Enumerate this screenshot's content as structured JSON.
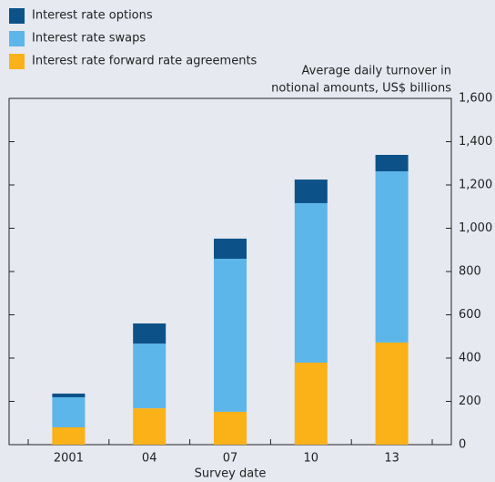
{
  "chart_data": {
    "type": "stacked_bar",
    "categories": [
      "2001",
      "04",
      "07",
      "10",
      "13"
    ],
    "series": [
      {
        "name": "Interest rate options",
        "color": "#0c5289",
        "values": [
          17,
          93,
          93,
          109,
          76
        ]
      },
      {
        "name": "Interest rate swaps",
        "color": "#5db6e9",
        "values": [
          139,
          299,
          707,
          737,
          791
        ]
      },
      {
        "name": "Interest rate forward rate agreements",
        "color": "#fbb118",
        "values": [
          80,
          168,
          152,
          379,
          472
        ]
      }
    ],
    "stack_from_bottom": [
      "Interest rate forward rate agreements",
      "Interest rate swaps",
      "Interest rate options"
    ],
    "ylabel": [
      "Average daily turnover in",
      "notional amounts, US$ billions"
    ],
    "xlabel": "Survey date",
    "ylim": [
      0,
      1600
    ],
    "yticks": [
      0,
      200,
      400,
      600,
      800,
      {
        "value": 1000,
        "label": "1,000"
      },
      {
        "value": 1200,
        "label": "1,200"
      },
      {
        "value": 1400,
        "label": "1,400"
      },
      {
        "value": 1600,
        "label": "1,600"
      }
    ],
    "yaxis_side": "right"
  }
}
